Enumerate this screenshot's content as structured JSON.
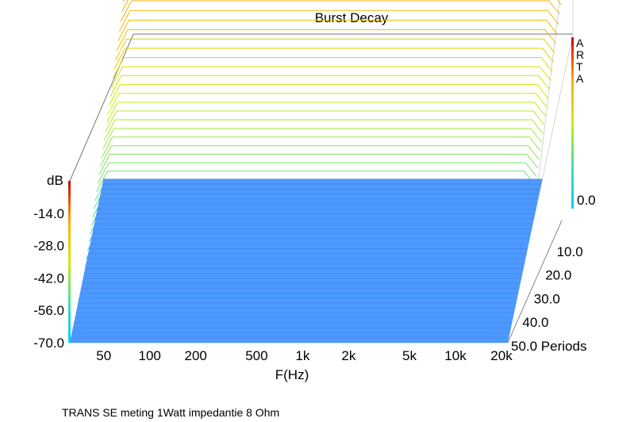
{
  "chart_data": {
    "type": "waterfall",
    "title": "Burst Decay",
    "xlabel": "F(Hz)",
    "ylabel": "dB",
    "zlabel": "Periods",
    "x_scale": "log",
    "x_ticks": [
      "50",
      "100",
      "200",
      "500",
      "1k",
      "2k",
      "5k",
      "10k",
      "20k"
    ],
    "x_tick_values": [
      50,
      100,
      200,
      500,
      1000,
      2000,
      5000,
      10000,
      20000
    ],
    "y_ticks": [
      "-14.0",
      "-28.0",
      "-42.0",
      "-56.0",
      "-70.0"
    ],
    "y_tick_values": [
      -14,
      -28,
      -42,
      -56,
      -70
    ],
    "ylim": [
      -70,
      0
    ],
    "z_ticks": [
      "0.0",
      "10.0",
      "20.0",
      "30.0",
      "40.0",
      "50.0"
    ],
    "z_tick_values": [
      0,
      10,
      20,
      30,
      40,
      50
    ],
    "zlim": [
      0,
      50
    ],
    "brand": "ARTA",
    "colormap": [
      "#00ccff",
      "#44ddaa",
      "#ccee00",
      "#ffaa00",
      "#ff4400",
      "#cc0000"
    ],
    "floor_color": "#4d99ff",
    "annotation": "TRANS SE meting 1Watt impedantie 8 Ohm"
  }
}
